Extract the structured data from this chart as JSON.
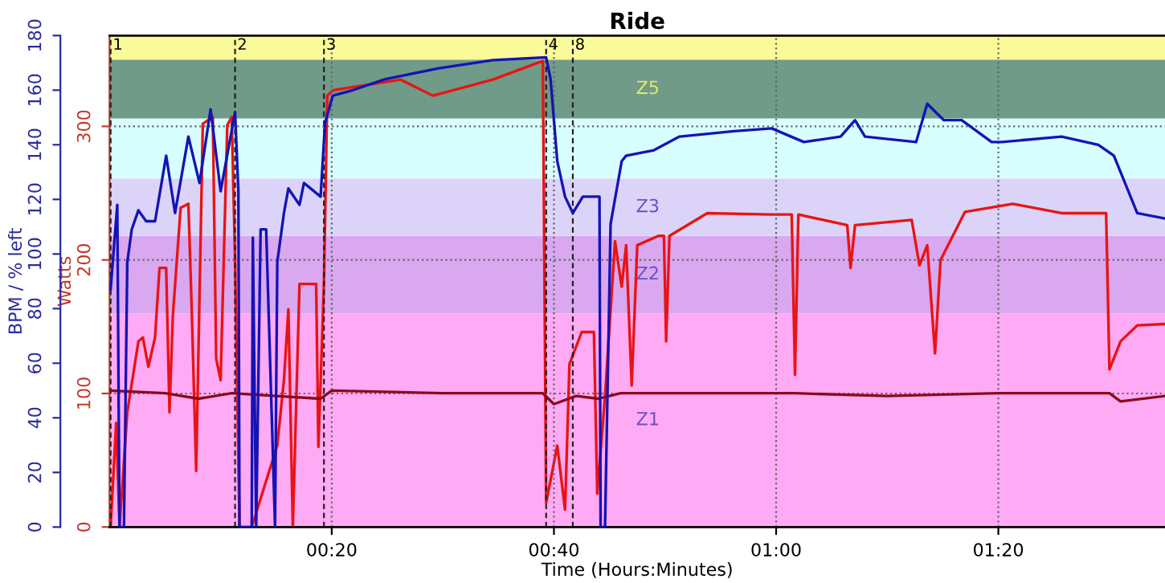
{
  "chart_data": {
    "type": "line",
    "title": "Ride",
    "xlabel": "Time (Hours:Minutes)",
    "ylabel": "BPM / % left",
    "y2label": "Watts",
    "xlim": [
      0,
      95
    ],
    "xticks": [
      {
        "value": 20,
        "label": "00:20"
      },
      {
        "value": 40,
        "label": "00:40"
      },
      {
        "value": 60,
        "label": "01:00"
      },
      {
        "value": 80,
        "label": "01:20"
      }
    ],
    "ylim": [
      0,
      180
    ],
    "yticks": [
      0,
      20,
      40,
      60,
      80,
      100,
      120,
      140,
      160,
      180
    ],
    "y2lim": [
      0,
      368
    ],
    "y2ticks": [
      0,
      100,
      200,
      300
    ],
    "grid": true,
    "legend": false,
    "marker": "none",
    "line_style": "solid",
    "bands": [
      {
        "axis": "y2",
        "from": 0,
        "to": 160,
        "label": "Z1",
        "color": "#ffaaf5"
      },
      {
        "axis": "y2",
        "from": 160,
        "to": 218,
        "label": "Z2",
        "color": "#d9a8f0"
      },
      {
        "axis": "y2",
        "from": 218,
        "to": 261,
        "label": "Z3",
        "color": "#dcd4f8"
      },
      {
        "axis": "y2",
        "from": 261,
        "to": 306,
        "label": null,
        "color": "#d8ffff"
      },
      {
        "axis": "y2",
        "from": 306,
        "to": 350,
        "label": "Z5",
        "color": "#6f9b88"
      },
      {
        "axis": "y2",
        "from": 350,
        "to": 368,
        "label": null,
        "color": "#fafa98"
      }
    ],
    "ref_lines": [
      {
        "axis": "x",
        "value": 0.1
      },
      {
        "axis": "x",
        "value": 11.3
      },
      {
        "axis": "x",
        "value": 19.3
      },
      {
        "axis": "x",
        "value": 39.3
      },
      {
        "axis": "x",
        "value": 41.7
      }
    ],
    "annotations": [
      {
        "text": "1",
        "x": 0.1,
        "y": 180
      },
      {
        "text": "2",
        "x": 11.3,
        "y": 180
      },
      {
        "text": "3",
        "x": 19.3,
        "y": 180
      },
      {
        "text": "4",
        "x": 39.3,
        "y": 180
      },
      {
        "text": "8",
        "x": 41.7,
        "y": 180
      }
    ],
    "series": [
      {
        "color": "#8b0a1a",
        "x": [
          0.1,
          5,
          8,
          11,
          15,
          19,
          20,
          30,
          39,
          40,
          42,
          44,
          46,
          60,
          61.7,
          70,
          80,
          90,
          91,
          95
        ],
        "values": [
          50,
          49,
          47,
          49,
          48,
          47,
          50,
          49,
          49,
          45,
          48,
          47,
          49,
          49,
          49,
          48,
          49,
          49,
          46,
          48
        ]
      },
      {
        "color": "#1414b4",
        "x": [
          0.1,
          0.7,
          0.9,
          1.3,
          1.6,
          2.0,
          2.6,
          3.3,
          4.1,
          5.1,
          5.9,
          7.1,
          8.1,
          9.1,
          10.0,
          11.3,
          11.6,
          11.7,
          12.8,
          12.9,
          13.2,
          13.6,
          14.1,
          14.9,
          15.1,
          15.7,
          16.1,
          17.1,
          17.5,
          19.0,
          19.4,
          20.1,
          21.9,
          24.8,
          29.6,
          34.5,
          39.3,
          39.7,
          40.3,
          41.0,
          41.7,
          42.6,
          44.1,
          44.2,
          44.6,
          45.1,
          46.1,
          46.5,
          49.0,
          51.3,
          56.2,
          59.6,
          62.5,
          65.8,
          67.1,
          68.0,
          72.6,
          73.6,
          75.1,
          76.7,
          79.4,
          80.3,
          85.7,
          89.0,
          90.4,
          92.5,
          95.0
        ],
        "values": [
          87,
          118,
          0,
          0,
          97,
          109,
          116,
          112,
          112,
          136,
          115,
          143,
          126,
          153,
          123,
          152,
          123,
          0,
          0,
          106,
          0,
          109,
          109,
          0,
          97,
          115,
          124,
          118,
          126,
          121,
          148,
          158,
          160,
          164,
          168,
          171,
          172,
          164,
          134,
          121,
          115,
          121,
          121,
          0,
          0,
          111,
          134,
          136,
          138,
          143,
          145,
          146,
          141,
          143,
          149,
          143,
          141,
          155,
          149,
          149,
          141,
          141,
          143,
          140,
          136,
          115,
          113
        ]
      },
      {
        "color": "#e81414",
        "axis": "y2",
        "x": [
          0.1,
          0.6,
          0.9,
          1.6,
          2.6,
          3.0,
          3.5,
          4.1,
          4.5,
          5.1,
          5.4,
          5.7,
          6.4,
          7.1,
          7.4,
          7.8,
          8.4,
          9.3,
          9.6,
          10.0,
          10.6,
          11.0,
          11.3,
          11.7,
          12.8,
          15.1,
          15.7,
          16.1,
          16.5,
          17.1,
          18.6,
          18.8,
          19.3,
          19.6,
          20.1,
          26.2,
          29.1,
          34.5,
          39.0,
          39.3,
          40.3,
          41.0,
          41.4,
          42.5,
          43.6,
          43.9,
          44.6,
          45.5,
          46.1,
          46.5,
          47.0,
          47.5,
          49.4,
          49.9,
          50.1,
          50.4,
          53.8,
          59.6,
          61.4,
          61.7,
          62.0,
          66.4,
          66.7,
          67.1,
          72.2,
          72.9,
          73.6,
          74.3,
          74.8,
          77.0,
          81.3,
          85.7,
          89.7,
          90.0,
          91.0,
          92.5,
          95.0
        ],
        "values": [
          0,
          78,
          0,
          86,
          139,
          142,
          120,
          142,
          194,
          194,
          86,
          158,
          239,
          242,
          163,
          42,
          302,
          307,
          126,
          110,
          301,
          307,
          200,
          0,
          0,
          61,
          110,
          163,
          0,
          182,
          182,
          60,
          182,
          323,
          327,
          335,
          323,
          335,
          349,
          18,
          61,
          13,
          122,
          146,
          146,
          25,
          98,
          214,
          180,
          211,
          106,
          211,
          218,
          218,
          139,
          218,
          235,
          234,
          234,
          114,
          234,
          226,
          194,
          226,
          230,
          196,
          211,
          130,
          200,
          236,
          242,
          235,
          235,
          118,
          139,
          151,
          152
        ]
      }
    ]
  }
}
